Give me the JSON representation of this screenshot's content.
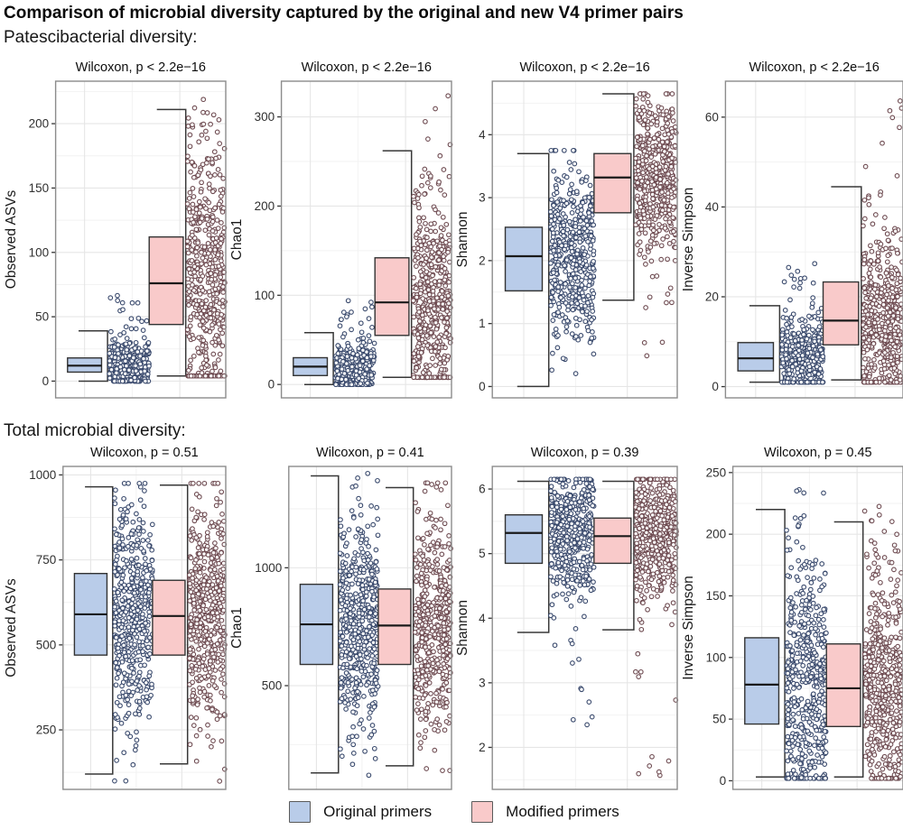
{
  "title": "Comparison of microbial diversity captured by the original and new V4 primer pairs",
  "sections": {
    "patescibacterial": {
      "heading": "Patescibacterial diversity:"
    },
    "total": {
      "heading": "Total microbial diversity:"
    }
  },
  "legend": {
    "original": "Original primers",
    "modified": "Modified primers"
  },
  "colors": {
    "original_fill": "#b9cce9",
    "modified_fill": "#f9caca",
    "original_point_stroke": "#3a4a6d",
    "modified_point_stroke": "#6f4c52",
    "point_fill": "#ffffff",
    "box_stroke": "#333333",
    "median_stroke": "#1a1a1a",
    "bracket_stroke": "#383838",
    "panel_border": "#8c8c8c",
    "grid_major": "#e6e6e6",
    "grid_minor": "#f2f2f2",
    "tick_text": "#303030",
    "title_text": "#0d0d0d"
  },
  "chart_data": {
    "type": "boxplot-jitter",
    "legend_entries": [
      "Original primers",
      "Modified primers"
    ],
    "rows": [
      {
        "section": "patescibacterial",
        "panels": [
          {
            "title": "Wilcoxon, p < 2.2e−16",
            "ylabel": "Observed ASVs",
            "ylim": [
              -13,
              233
            ],
            "yticks": [
              0,
              50,
              100,
              150,
              200
            ],
            "groups": [
              {
                "name": "Original primers",
                "box": {
                  "q1": 7,
                  "median": 12,
                  "q3": 18,
                  "whisker_lo": 0,
                  "whisker_hi": 39
                },
                "points": {
                  "n": 420,
                  "spread": 9,
                  "min": 0,
                  "max": 68,
                  "tail": 0.04,
                  "tail_lo": 38,
                  "tail_hi": 68
                }
              },
              {
                "name": "Modified primers",
                "box": {
                  "q1": 44,
                  "median": 76,
                  "q3": 112,
                  "whisker_lo": 4,
                  "whisker_hi": 211
                },
                "points": {
                  "n": 500,
                  "spread": 50,
                  "min": 4,
                  "max": 222,
                  "tail": 0.03,
                  "tail_lo": 150,
                  "tail_hi": 222
                }
              }
            ]
          },
          {
            "title": "Wilcoxon, p < 2.2e−16",
            "ylabel": "Chao1",
            "ylim": [
              -15,
              340
            ],
            "yticks": [
              0,
              100,
              200,
              300
            ],
            "groups": [
              {
                "name": "Original primers",
                "box": {
                  "q1": 10,
                  "median": 20,
                  "q3": 30,
                  "whisker_lo": 0,
                  "whisker_hi": 58
                },
                "points": {
                  "n": 420,
                  "spread": 13,
                  "min": 0,
                  "max": 95,
                  "tail": 0.03,
                  "tail_lo": 58,
                  "tail_hi": 95
                }
              },
              {
                "name": "Modified primers",
                "box": {
                  "q1": 55,
                  "median": 92,
                  "q3": 142,
                  "whisker_lo": 8,
                  "whisker_hi": 262
                },
                "points": {
                  "n": 500,
                  "spread": 60,
                  "min": 8,
                  "max": 325,
                  "tail": 0.02,
                  "tail_lo": 220,
                  "tail_hi": 325
                }
              }
            ]
          },
          {
            "title": "Wilcoxon, p < 2.2e−16",
            "ylabel": "Shannon",
            "ylim": [
              -0.18,
              4.85
            ],
            "yticks": [
              0,
              1,
              2,
              3,
              4
            ],
            "groups": [
              {
                "name": "Original primers",
                "box": {
                  "q1": 1.52,
                  "median": 2.07,
                  "q3": 2.53,
                  "whisker_lo": 0,
                  "whisker_hi": 3.7
                },
                "points": {
                  "n": 480,
                  "spread": 0.75,
                  "min": 0,
                  "max": 3.75,
                  "tail": 0,
                  "tail_lo": 0,
                  "tail_hi": 0
                }
              },
              {
                "name": "Modified primers",
                "box": {
                  "q1": 2.76,
                  "median": 3.32,
                  "q3": 3.7,
                  "whisker_lo": 1.37,
                  "whisker_hi": 4.65
                },
                "points": {
                  "n": 500,
                  "spread": 0.62,
                  "min": 0.3,
                  "max": 4.65,
                  "tail": 0.03,
                  "tail_lo": 0.3,
                  "tail_hi": 1.8
                }
              }
            ]
          },
          {
            "title": "Wilcoxon, p < 2.2e−16",
            "ylabel": "Inverse Simpson",
            "ylim": [
              -2.5,
              68
            ],
            "yticks": [
              0,
              20,
              40,
              60
            ],
            "groups": [
              {
                "name": "Original primers",
                "box": {
                  "q1": 3.5,
                  "median": 6.3,
                  "q3": 9.8,
                  "whisker_lo": 1,
                  "whisker_hi": 18
                },
                "points": {
                  "n": 430,
                  "spread": 4.5,
                  "min": 1,
                  "max": 27.5,
                  "tail": 0.04,
                  "tail_lo": 15,
                  "tail_hi": 27.5
                }
              },
              {
                "name": "Modified primers",
                "box": {
                  "q1": 9.3,
                  "median": 14.7,
                  "q3": 23.3,
                  "whisker_lo": 1.5,
                  "whisker_hi": 44.5
                },
                "points": {
                  "n": 500,
                  "spread": 10,
                  "min": 1,
                  "max": 65,
                  "tail": 0.03,
                  "tail_lo": 40,
                  "tail_hi": 65
                }
              }
            ]
          }
        ]
      },
      {
        "section": "total",
        "panels": [
          {
            "title": "Wilcoxon, p = 0.51",
            "ylabel": "Observed ASVs",
            "ylim": [
              75,
              1025
            ],
            "yticks": [
              250,
              500,
              750,
              1000
            ],
            "groups": [
              {
                "name": "Original primers",
                "box": {
                  "q1": 470,
                  "median": 590,
                  "q3": 710,
                  "whisker_lo": 120,
                  "whisker_hi": 965
                },
                "points": {
                  "n": 500,
                  "spread": 170,
                  "min": 100,
                  "max": 975,
                  "tail": 0,
                  "tail_lo": 0,
                  "tail_hi": 0
                }
              },
              {
                "name": "Modified primers",
                "box": {
                  "q1": 470,
                  "median": 585,
                  "q3": 690,
                  "whisker_lo": 150,
                  "whisker_hi": 970
                },
                "points": {
                  "n": 500,
                  "spread": 165,
                  "min": 90,
                  "max": 975,
                  "tail": 0,
                  "tail_lo": 0,
                  "tail_hi": 0
                }
              }
            ]
          },
          {
            "title": "Wilcoxon, p = 0.41",
            "ylabel": "Chao1",
            "ylim": [
              60,
              1430
            ],
            "yticks": [
              500,
              1000
            ],
            "groups": [
              {
                "name": "Original primers",
                "box": {
                  "q1": 590,
                  "median": 760,
                  "q3": 930,
                  "whisker_lo": 130,
                  "whisker_hi": 1390
                },
                "points": {
                  "n": 500,
                  "spread": 240,
                  "min": 120,
                  "max": 1400,
                  "tail": 0,
                  "tail_lo": 0,
                  "tail_hi": 0
                }
              },
              {
                "name": "Modified primers",
                "box": {
                  "q1": 590,
                  "median": 755,
                  "q3": 910,
                  "whisker_lo": 160,
                  "whisker_hi": 1340
                },
                "points": {
                  "n": 500,
                  "spread": 235,
                  "min": 140,
                  "max": 1360,
                  "tail": 0,
                  "tail_lo": 0,
                  "tail_hi": 0
                }
              }
            ]
          },
          {
            "title": "Wilcoxon, p = 0.39",
            "ylabel": "Shannon",
            "ylim": [
              1.35,
              6.35
            ],
            "yticks": [
              2,
              3,
              4,
              5,
              6
            ],
            "groups": [
              {
                "name": "Original primers",
                "box": {
                  "q1": 4.85,
                  "median": 5.32,
                  "q3": 5.6,
                  "whisker_lo": 3.78,
                  "whisker_hi": 6.12
                },
                "points": {
                  "n": 480,
                  "spread": 0.5,
                  "min": 2.35,
                  "max": 6.15,
                  "tail": 0.025,
                  "tail_lo": 2.3,
                  "tail_hi": 3.8
                }
              },
              {
                "name": "Modified primers",
                "box": {
                  "q1": 4.85,
                  "median": 5.27,
                  "q3": 5.55,
                  "whisker_lo": 3.82,
                  "whisker_hi": 6.12
                },
                "points": {
                  "n": 480,
                  "spread": 0.5,
                  "min": 1.5,
                  "max": 6.15,
                  "tail": 0.02,
                  "tail_lo": 1.5,
                  "tail_hi": 3.7
                }
              }
            ]
          },
          {
            "title": "Wilcoxon, p = 0.45",
            "ylabel": "Inverse Simpson",
            "ylim": [
              -7,
              255
            ],
            "yticks": [
              0,
              50,
              100,
              150,
              200,
              250
            ],
            "groups": [
              {
                "name": "Original primers",
                "box": {
                  "q1": 46,
                  "median": 78,
                  "q3": 116,
                  "whisker_lo": 3,
                  "whisker_hi": 220
                },
                "points": {
                  "n": 500,
                  "spread": 52,
                  "min": 2,
                  "max": 240,
                  "tail": 0.02,
                  "tail_lo": 170,
                  "tail_hi": 240
                }
              },
              {
                "name": "Modified primers",
                "box": {
                  "q1": 44,
                  "median": 75,
                  "q3": 111,
                  "whisker_lo": 3,
                  "whisker_hi": 210
                },
                "points": {
                  "n": 500,
                  "spread": 50,
                  "min": 2,
                  "max": 235,
                  "tail": 0.02,
                  "tail_lo": 165,
                  "tail_hi": 235
                }
              }
            ]
          }
        ]
      }
    ]
  }
}
